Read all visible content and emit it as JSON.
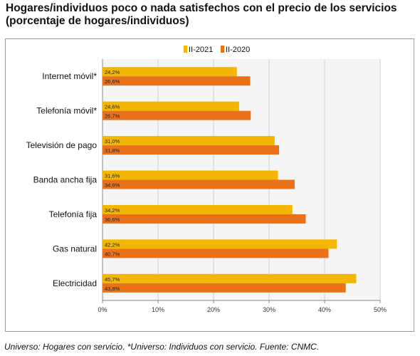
{
  "title_line1": "Hogares/individuos poco o nada satisfechos con el precio de los servicios",
  "title_line2": "(porcentaje de hogares/individuos)",
  "footnote": "Universo: Hogares con servicio. *Universo: Individuos con servicio. Fuente: CNMC.",
  "colors": {
    "II-2021": "#f2b705",
    "II-2020": "#e8711a"
  },
  "chart_data": {
    "type": "bar",
    "orientation": "horizontal",
    "categories": [
      "Internet móvil*",
      "Telefonía móvil*",
      "Televisión de pago",
      "Banda ancha fija",
      "Telefonía fija",
      "Gas natural",
      "Electricidad"
    ],
    "series": [
      {
        "name": "II-2021",
        "values": [
          24.2,
          24.6,
          31.0,
          31.6,
          34.2,
          42.2,
          45.7
        ],
        "labels": [
          "24,2%",
          "24,6%",
          "31,0%",
          "31,6%",
          "34,2%",
          "42,2%",
          "45,7%"
        ]
      },
      {
        "name": "II-2020",
        "values": [
          26.6,
          26.7,
          31.8,
          34.6,
          36.6,
          40.7,
          43.8
        ],
        "labels": [
          "26,6%",
          "26,7%",
          "31,8%",
          "34,6%",
          "36,6%",
          "40,7%",
          "43,8%"
        ]
      }
    ],
    "xlim": [
      0,
      50
    ],
    "xticks": [
      "0%",
      "10%",
      "20%",
      "30%",
      "40%",
      "50%"
    ],
    "grid": true,
    "legend": "top-center"
  }
}
